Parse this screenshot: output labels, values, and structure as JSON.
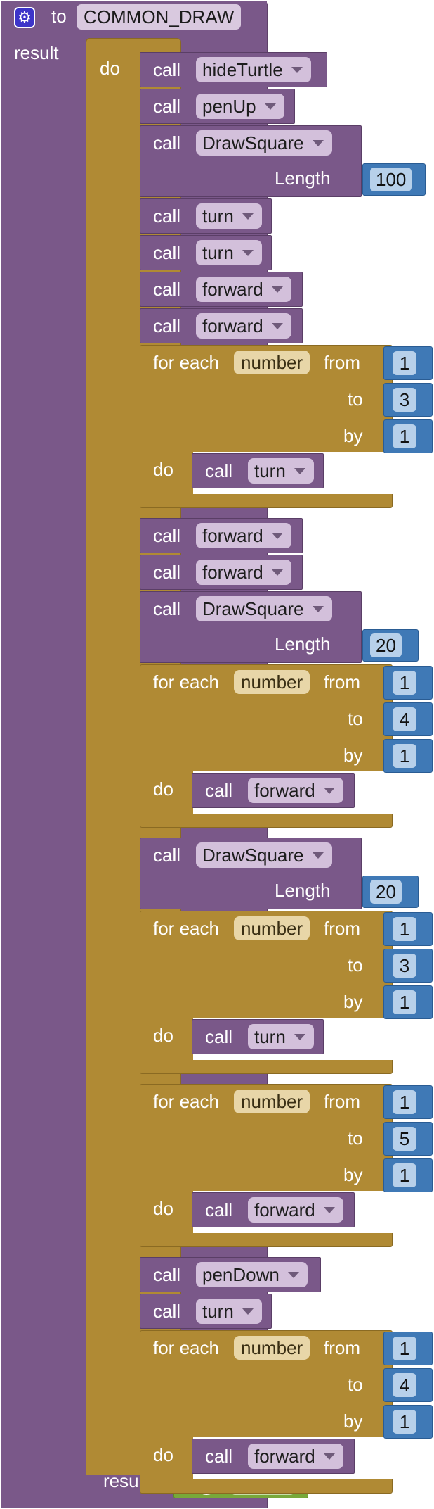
{
  "procedure": {
    "keyword": "to",
    "name": "COMMON_DRAW",
    "result_label": "result",
    "do_label": "do",
    "gear_icon": "gear-icon"
  },
  "labels": {
    "call": "call",
    "for_each": "for each",
    "from": "from",
    "to": "to",
    "by": "by",
    "do": "do",
    "length": "Length",
    "variable": "number"
  },
  "statements": [
    {
      "type": "call",
      "proc": "hideTurtle"
    },
    {
      "type": "call",
      "proc": "penUp"
    },
    {
      "type": "call",
      "proc": "DrawSquare",
      "arg": "100"
    },
    {
      "type": "call",
      "proc": "turn"
    },
    {
      "type": "call",
      "proc": "turn"
    },
    {
      "type": "call",
      "proc": "forward"
    },
    {
      "type": "call",
      "proc": "forward"
    },
    {
      "type": "loop",
      "from": "1",
      "to": "3",
      "by": "1",
      "body": "turn"
    },
    {
      "type": "call",
      "proc": "forward"
    },
    {
      "type": "call",
      "proc": "forward"
    },
    {
      "type": "call",
      "proc": "DrawSquare",
      "arg": "20"
    },
    {
      "type": "loop",
      "from": "1",
      "to": "4",
      "by": "1",
      "body": "forward"
    },
    {
      "type": "call",
      "proc": "DrawSquare",
      "arg": "20"
    },
    {
      "type": "loop",
      "from": "1",
      "to": "3",
      "by": "1",
      "body": "turn"
    },
    {
      "type": "loop",
      "from": "1",
      "to": "5",
      "by": "1",
      "body": "forward"
    },
    {
      "type": "call",
      "proc": "penDown"
    },
    {
      "type": "call",
      "proc": "turn"
    },
    {
      "type": "loop",
      "from": "1",
      "to": "4",
      "by": "1",
      "body": "forward"
    }
  ],
  "result": {
    "label": "result",
    "value": "true",
    "help_symbol": "?",
    "help_icon": "help-icon"
  },
  "colors": {
    "procedure": "#7a5889",
    "control": "#b08a34",
    "math": "#3f79b6",
    "logic": "#78a83a"
  }
}
